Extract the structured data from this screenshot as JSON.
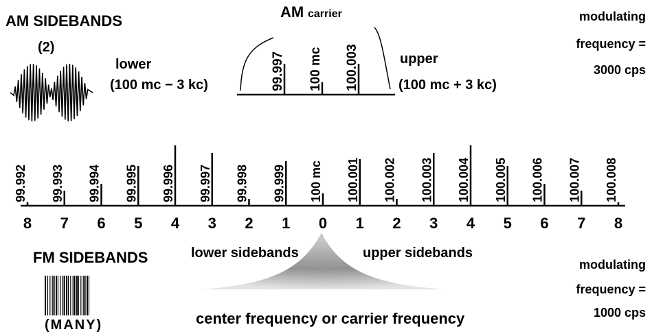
{
  "am": {
    "title": "AM SIDEBANDS",
    "count": "(2)",
    "carrier_title": "AM",
    "carrier_sub": "carrier",
    "lower": "lower",
    "lower_formula": "(100 mc − 3 kc)",
    "upper": "upper",
    "upper_formula": "(100 mc + 3 kc)",
    "lines": [
      "99.997",
      "100 mc",
      "100.003"
    ],
    "modulating": [
      "modulating",
      "frequency =",
      "3000 cps"
    ]
  },
  "fm": {
    "lines": [
      "99.992",
      "99.993",
      "99.994",
      "99.995",
      "99.996",
      "99.997",
      "99.998",
      "99.999",
      "100 mc",
      "100.001",
      "100.002",
      "100.003",
      "100.004",
      "100.005",
      "100.006",
      "100.007",
      "100.008"
    ],
    "orders": [
      "8",
      "7",
      "6",
      "5",
      "4",
      "3",
      "2",
      "1",
      "0",
      "1",
      "2",
      "3",
      "4",
      "5",
      "6",
      "7",
      "8"
    ],
    "title": "FM SIDEBANDS",
    "count": "(MANY)",
    "lower_sidebands": "lower sidebands",
    "upper_sidebands": "upper sidebands",
    "center": "center frequency or carrier frequency",
    "modulating": [
      "modulating",
      "frequency =",
      "1000 cps"
    ]
  }
}
